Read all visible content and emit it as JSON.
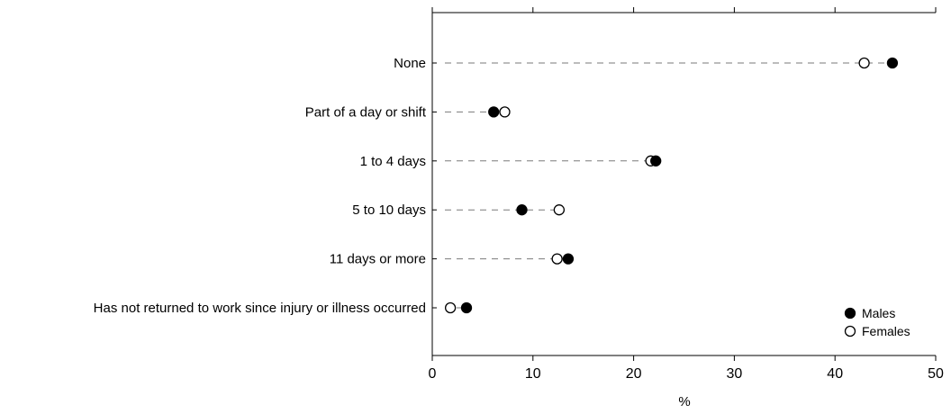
{
  "chart_data": {
    "type": "scatter",
    "title": "",
    "xlabel": "%",
    "ylabel": "",
    "xlim": [
      0,
      50
    ],
    "x_ticks": [
      "0",
      "10",
      "20",
      "30",
      "40",
      "50"
    ],
    "categories": [
      "None",
      "Part of a day or shift",
      "1 to 4 days",
      "5 to 10 days",
      "11 days or more",
      "Has not returned to work since injury or illness occurred"
    ],
    "series": [
      {
        "name": "Males",
        "marker": "filled-circle",
        "color": "#000000",
        "values": [
          45.7,
          6.1,
          22.2,
          8.9,
          13.5,
          3.4
        ]
      },
      {
        "name": "Females",
        "marker": "open-circle",
        "color": "#000000",
        "values": [
          42.9,
          7.2,
          21.7,
          12.6,
          12.4,
          1.8
        ]
      }
    ],
    "grid": false,
    "legend_position": "bottom-right"
  }
}
